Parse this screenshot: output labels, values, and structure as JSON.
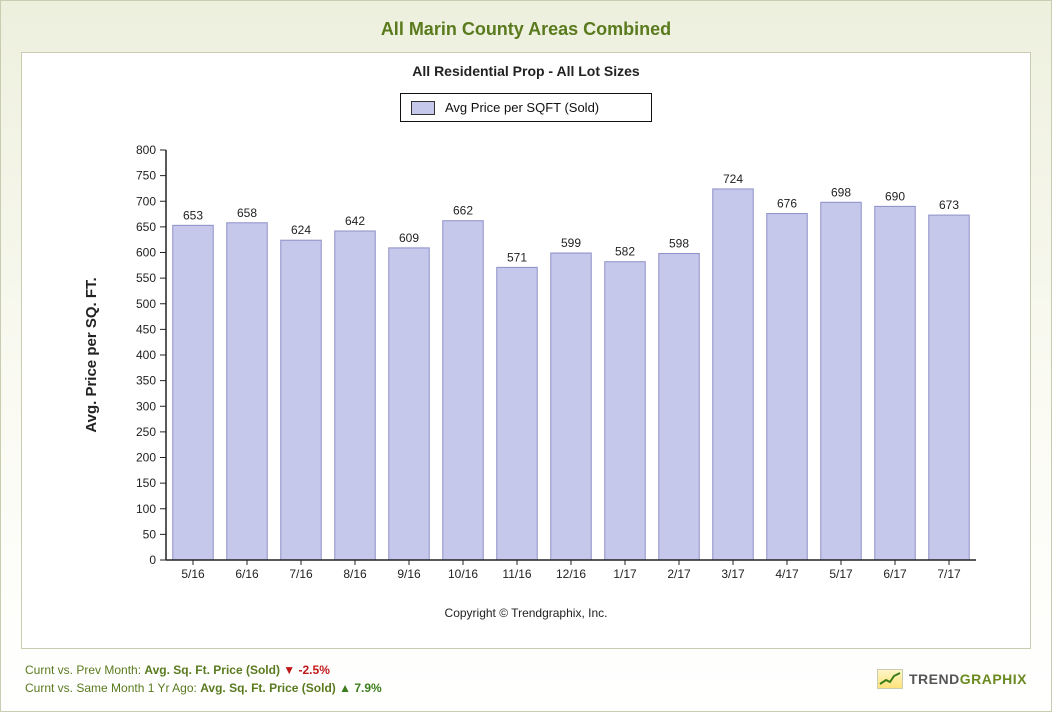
{
  "title": "All Marin County Areas Combined",
  "subtitle": "All Residential Prop - All Lot Sizes",
  "legend_label": "Avg Price per SQFT (Sold)",
  "copyright": "Copyright © Trendgraphix, Inc.",
  "chart": {
    "type": "bar",
    "categories": [
      "5/16",
      "6/16",
      "7/16",
      "8/16",
      "9/16",
      "10/16",
      "11/16",
      "12/16",
      "1/17",
      "2/17",
      "3/17",
      "4/17",
      "5/17",
      "6/17",
      "7/17"
    ],
    "values": [
      653,
      658,
      624,
      642,
      609,
      662,
      571,
      599,
      582,
      598,
      724,
      676,
      698,
      690,
      673
    ],
    "bar_fill": "#c5c7eb",
    "bar_stroke": "#8d90c8",
    "bg": "#ffffff",
    "axis_color": "#222222",
    "tick_color": "#222222",
    "label_color": "#222222",
    "ylabel": "Avg. Price per SQ. FT.",
    "ylim": [
      0,
      800
    ],
    "ytick_step": 50,
    "tick_fontsize": 12,
    "value_fontsize": 12,
    "ylabel_fontsize": 15,
    "bar_width_ratio": 0.75
  },
  "footer": {
    "line1_prefix": "Curnt vs. Prev Month: ",
    "line1_label": "Avg. Sq. Ft. Price (Sold) ",
    "line1_arrow": "▼",
    "line1_value": "-2.5%",
    "line1_dir": "down",
    "line2_prefix": "Curnt vs. Same Month 1 Yr Ago: ",
    "line2_label": "Avg. Sq. Ft. Price (Sold) ",
    "line2_arrow": "▲",
    "line2_value": "7.9%",
    "line2_dir": "up"
  },
  "brand": {
    "trend": "TREND",
    "graphix": "GRAPHIX"
  }
}
